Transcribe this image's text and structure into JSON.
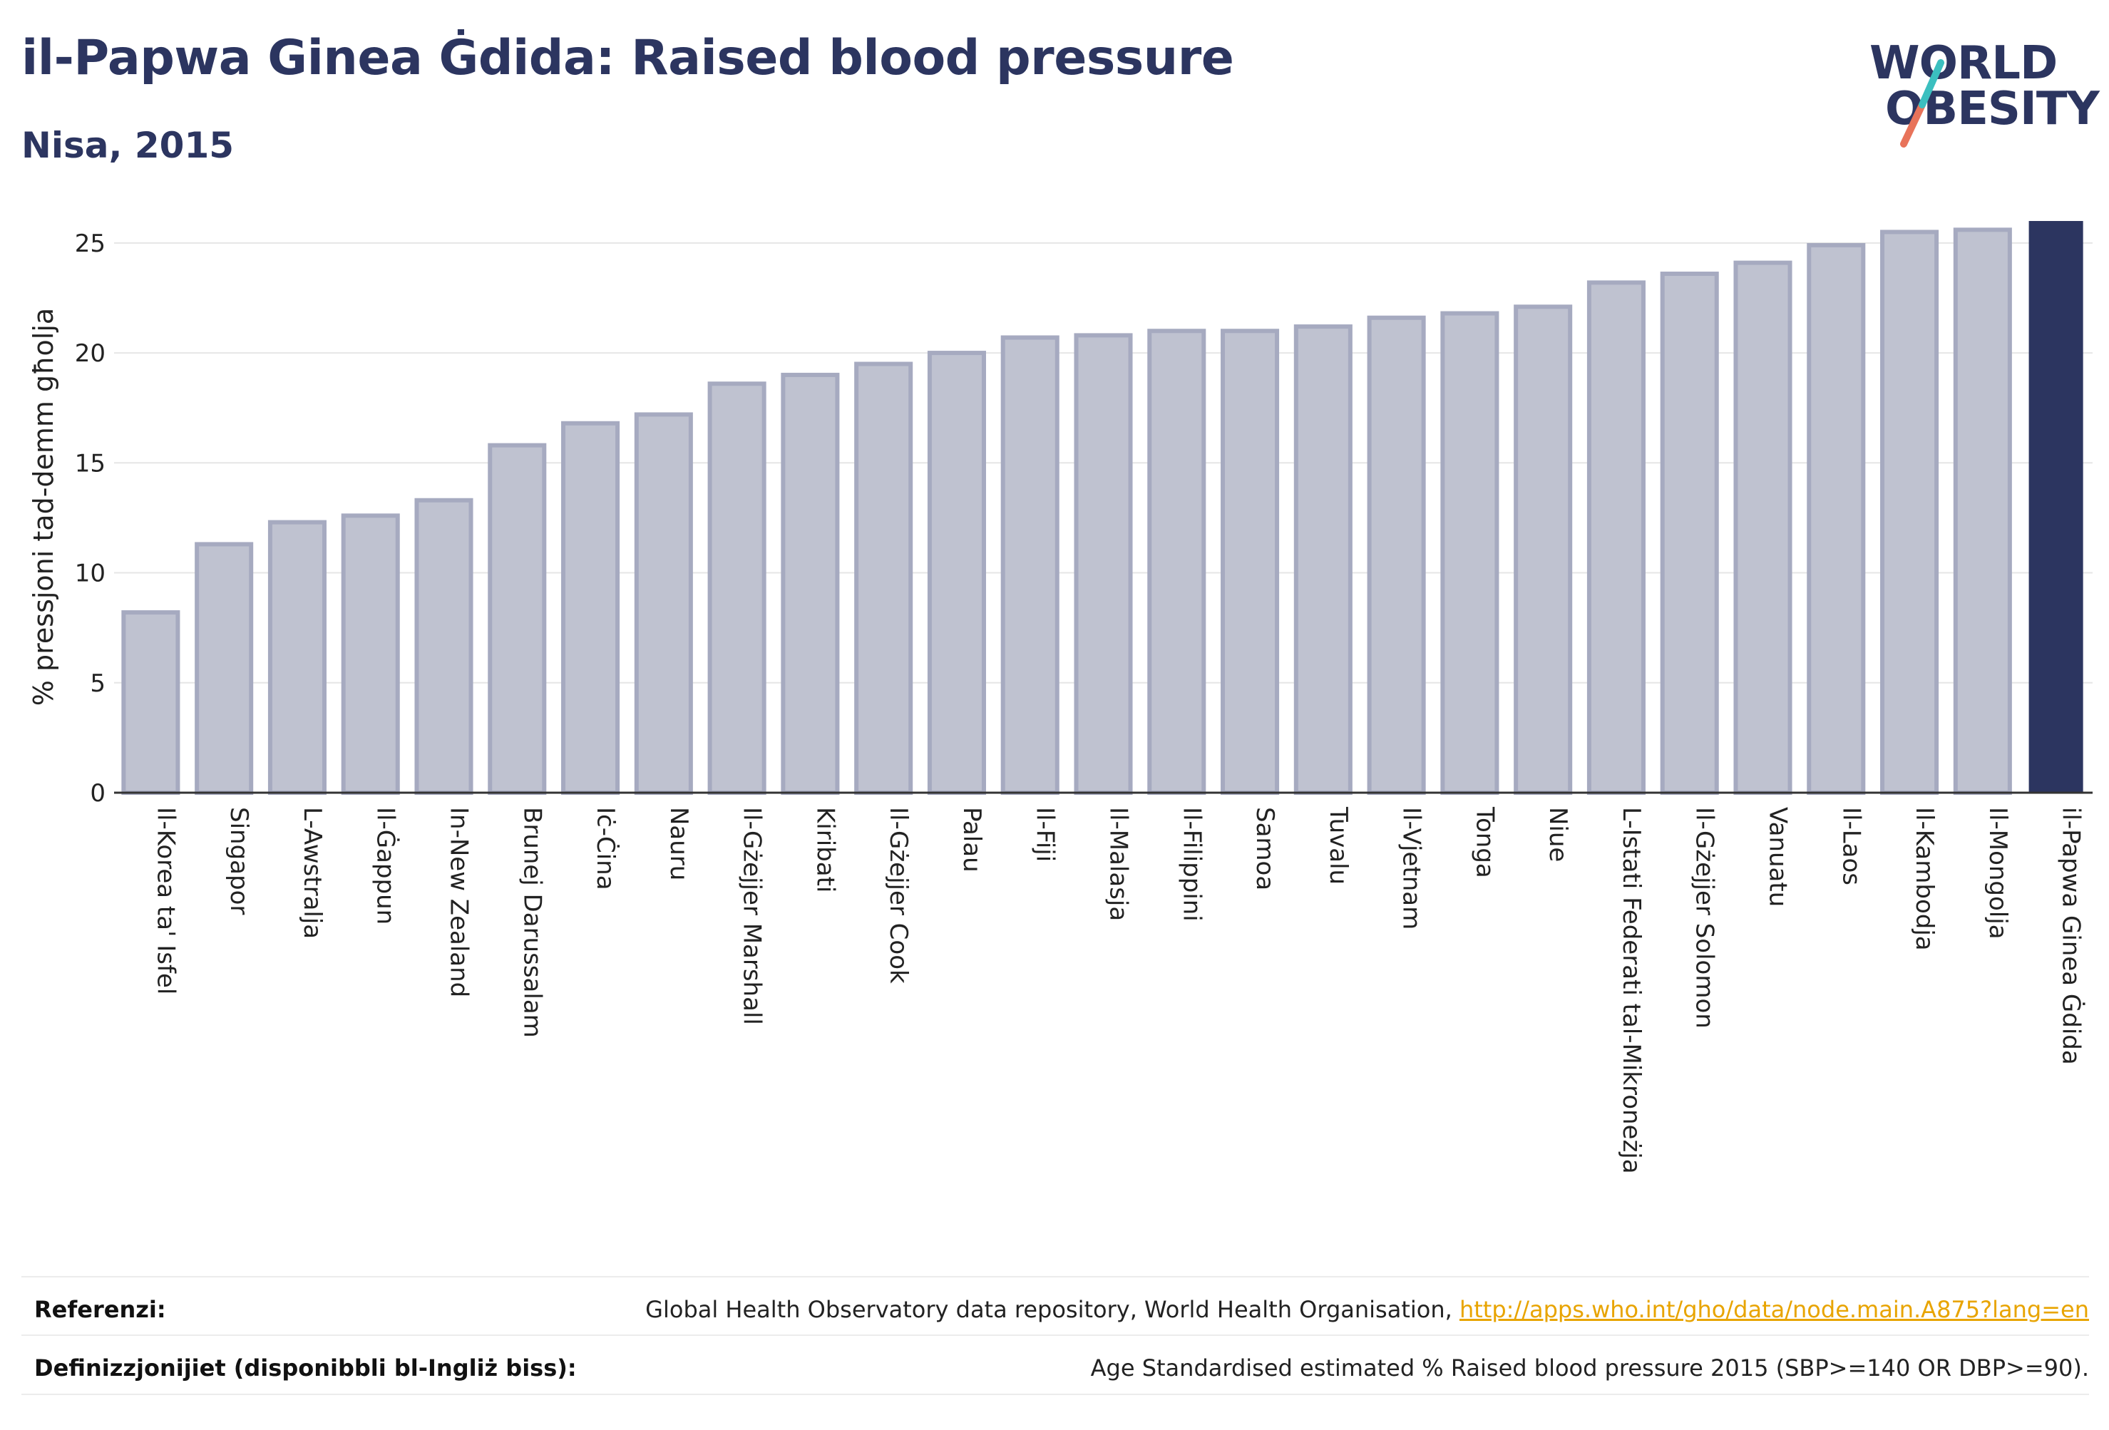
{
  "header": {
    "title": "il-Papwa Ginea Ġdida: Raised blood pressure",
    "subtitle": "Nisa, 2015"
  },
  "logo": {
    "line1": "WORLD",
    "line2": "OBESITY",
    "colors": {
      "text": "#2c3560",
      "slash_teal": "#3bbfbf",
      "slash_coral": "#e8735a"
    }
  },
  "chart_data": {
    "type": "bar",
    "title": "il-Papwa Ginea Ġdida: Raised blood pressure",
    "subtitle": "Nisa, 2015",
    "ylabel": "% pressjoni tad-demm għolja",
    "xlabel": "",
    "ylim": [
      0,
      26
    ],
    "yticks": [
      0,
      5,
      10,
      15,
      20,
      25
    ],
    "grid": true,
    "categories": [
      "Il-Korea ta' Isfel",
      "Singapor",
      "L-Awstralja",
      "Il-Ġappun",
      "In-New Zealand",
      "Brunej Darussalam",
      "Iċ-Ċina",
      "Nauru",
      "Il-Gżejjer Marshall",
      "Kiribati",
      "Il-Gżejjer Cook",
      "Palau",
      "Il-Fiji",
      "Il-Malasja",
      "Il-Filippini",
      "Samoa",
      "Tuvalu",
      "Il-Vjetnam",
      "Tonga",
      "Niue",
      "L-Istati Federati tal-Mikroneżja",
      "Il-Gżejjer Solomon",
      "Vanuatu",
      "Il-Laos",
      "Il-Kambodja",
      "Il-Mongolja",
      "il-Papwa Ginea Ġdida"
    ],
    "values": [
      8.2,
      11.3,
      12.3,
      12.6,
      13.3,
      15.8,
      16.8,
      17.2,
      18.6,
      19.0,
      19.5,
      20.0,
      20.7,
      20.8,
      21.0,
      21.0,
      21.2,
      21.6,
      21.8,
      22.1,
      23.2,
      23.6,
      24.1,
      24.9,
      25.5,
      25.6,
      26.0
    ],
    "highlight_index": 26,
    "colors": {
      "bar": "#bfc2d0",
      "bar_edge": "#a6aac0",
      "highlight": "#2c3560",
      "grid": "#e6e6e6",
      "axis": "#333333"
    }
  },
  "footer": {
    "references_label": "Referenzi:",
    "references_text": "Global Health Observatory data repository, World Health Organisation,",
    "references_link": "http://apps.who.int/gho/data/node.main.A875?lang=en",
    "definitions_label": "Definizzjonijiet (disponibbli bl-Ingliż biss):",
    "definitions_text": "Age Standardised estimated % Raised blood pressure 2015 (SBP>=140 OR DBP>=90)."
  }
}
